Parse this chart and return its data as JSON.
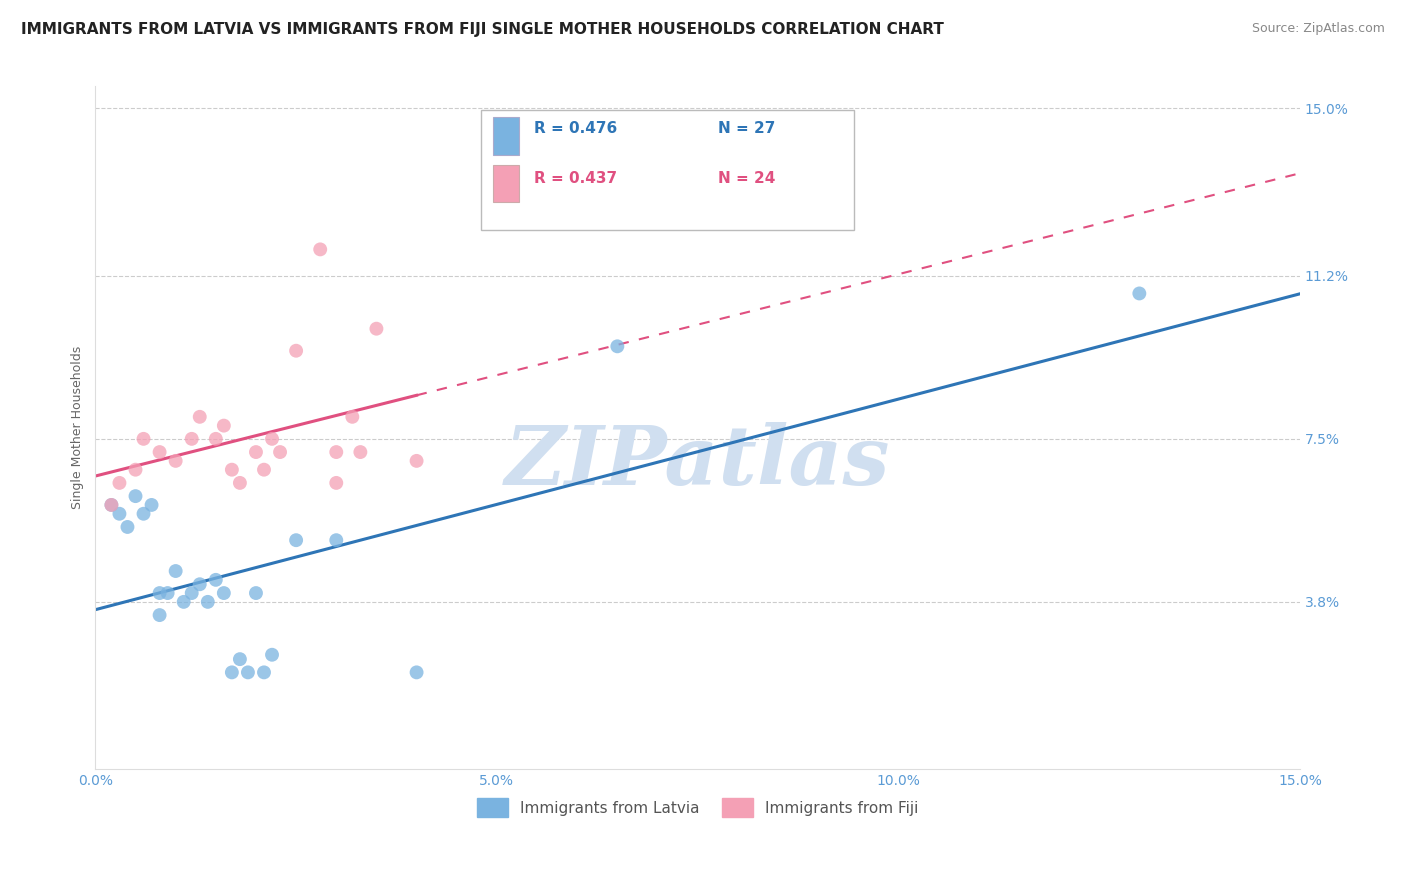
{
  "title": "IMMIGRANTS FROM LATVIA VS IMMIGRANTS FROM FIJI SINGLE MOTHER HOUSEHOLDS CORRELATION CHART",
  "source": "Source: ZipAtlas.com",
  "ylabel": "Single Mother Households",
  "legend_blue_r": "R = 0.476",
  "legend_blue_n": "N = 27",
  "legend_pink_r": "R = 0.437",
  "legend_pink_n": "N = 24",
  "legend_label_blue": "Immigrants from Latvia",
  "legend_label_pink": "Immigrants from Fiji",
  "xmin": 0.0,
  "xmax": 0.15,
  "ymin": 0.0,
  "ymax": 0.155,
  "yticks": [
    0.038,
    0.075,
    0.112,
    0.15
  ],
  "ytick_labels": [
    "3.8%",
    "7.5%",
    "11.2%",
    "15.0%"
  ],
  "xticks": [
    0.0,
    0.05,
    0.1,
    0.15
  ],
  "xtick_labels": [
    "0.0%",
    "5.0%",
    "10.0%",
    "15.0%"
  ],
  "blue_color": "#7ab3e0",
  "pink_color": "#f4a0b5",
  "blue_line_color": "#2e75b6",
  "pink_line_color": "#e05080",
  "axis_color": "#5b9bd5",
  "watermark": "ZIPatlas",
  "watermark_color": "#d0dff0",
  "blue_scatter_x": [
    0.002,
    0.003,
    0.004,
    0.005,
    0.006,
    0.007,
    0.008,
    0.008,
    0.009,
    0.01,
    0.011,
    0.012,
    0.013,
    0.014,
    0.015,
    0.016,
    0.017,
    0.018,
    0.019,
    0.02,
    0.021,
    0.022,
    0.025,
    0.03,
    0.04,
    0.065,
    0.13
  ],
  "blue_scatter_y": [
    0.06,
    0.058,
    0.055,
    0.062,
    0.058,
    0.06,
    0.04,
    0.035,
    0.04,
    0.045,
    0.038,
    0.04,
    0.042,
    0.038,
    0.043,
    0.04,
    0.022,
    0.025,
    0.022,
    0.04,
    0.022,
    0.026,
    0.052,
    0.052,
    0.022,
    0.096,
    0.108
  ],
  "pink_scatter_x": [
    0.002,
    0.003,
    0.005,
    0.006,
    0.008,
    0.01,
    0.012,
    0.013,
    0.015,
    0.016,
    0.017,
    0.018,
    0.02,
    0.021,
    0.022,
    0.023,
    0.025,
    0.028,
    0.03,
    0.03,
    0.032,
    0.033,
    0.035,
    0.04
  ],
  "pink_scatter_y": [
    0.06,
    0.065,
    0.068,
    0.075,
    0.072,
    0.07,
    0.075,
    0.08,
    0.075,
    0.078,
    0.068,
    0.065,
    0.072,
    0.068,
    0.075,
    0.072,
    0.095,
    0.118,
    0.065,
    0.072,
    0.08,
    0.072,
    0.1,
    0.07
  ],
  "background_color": "#ffffff",
  "grid_color": "#cccccc",
  "title_fontsize": 11,
  "label_fontsize": 9,
  "tick_fontsize": 10
}
